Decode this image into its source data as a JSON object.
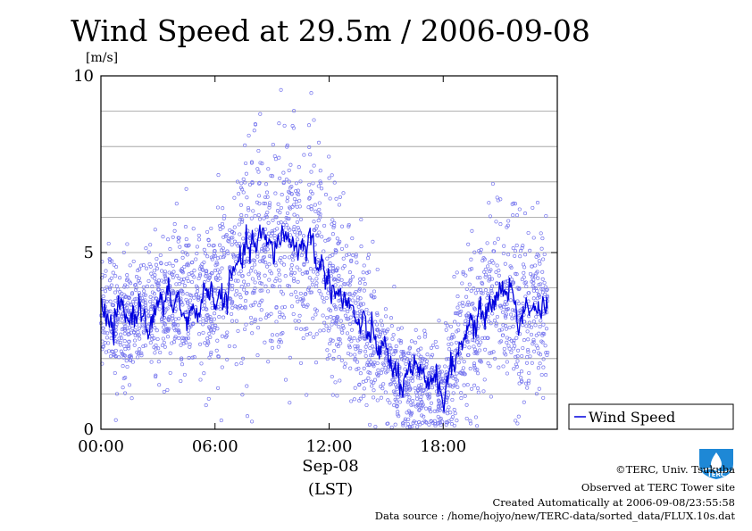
{
  "colors": {
    "scatter": "#7777ee",
    "line": "#0000dd",
    "grid": "#999999",
    "logo": "#1e88d6"
  },
  "logo_icon": "terc-logo-icon",
  "chart_data": {
    "type": "line",
    "title": "Wind Speed at 29.5m / 2006-09-08",
    "ylabel": "[m/s]",
    "xlabel": "(LST)",
    "date_label": "Sep-08",
    "xlim": [
      0,
      24
    ],
    "ylim": [
      0,
      10
    ],
    "yticks": [
      0,
      5,
      10
    ],
    "ytick_labels": [
      "0",
      "5",
      "10"
    ],
    "xticks": [
      0,
      6,
      12,
      18
    ],
    "xtick_labels": [
      "00:00",
      "06:00",
      "12:00",
      "18:00"
    ],
    "grid": true,
    "legend_position": "right",
    "series": [
      {
        "name": "Wind Speed",
        "type": "line",
        "x": [
          0,
          0.5,
          1,
          1.5,
          2,
          2.5,
          3,
          3.5,
          4,
          4.5,
          5,
          5.5,
          6,
          6.5,
          7,
          7.5,
          8,
          8.5,
          9,
          9.5,
          10,
          10.5,
          11,
          11.5,
          12,
          12.5,
          13,
          13.5,
          14,
          14.5,
          15,
          15.5,
          16,
          16.5,
          17,
          17.5,
          18,
          18.5,
          19,
          19.5,
          20,
          20.5,
          21,
          21.5,
          22,
          22.5,
          23,
          23.5
        ],
        "values": [
          3.4,
          2.8,
          3.3,
          3.1,
          3.5,
          3.0,
          3.4,
          3.6,
          3.7,
          3.0,
          3.3,
          3.9,
          3.8,
          3.6,
          4.4,
          4.9,
          5.2,
          5.4,
          5.0,
          5.6,
          5.3,
          5.1,
          5.4,
          4.6,
          4.3,
          3.8,
          3.5,
          3.0,
          2.7,
          2.5,
          2.1,
          1.6,
          1.2,
          1.6,
          1.3,
          1.6,
          1.0,
          1.7,
          2.6,
          3.0,
          3.1,
          3.6,
          3.9,
          4.0,
          3.1,
          3.6,
          3.4,
          3.3
        ]
      },
      {
        "type": "scatter",
        "x": [
          0,
          1,
          2,
          3,
          4,
          5,
          6,
          7,
          7.5,
          8,
          9,
          9.5,
          10,
          10.5,
          11,
          12,
          13,
          14,
          15,
          16,
          17,
          18,
          19,
          20,
          21,
          22,
          23
        ],
        "values": [
          3.4,
          3.0,
          3.3,
          3.5,
          3.7,
          3.5,
          3.8,
          4.4,
          4.9,
          5.2,
          5.0,
          5.6,
          5.3,
          5.1,
          5.4,
          4.3,
          3.5,
          2.7,
          2.1,
          1.2,
          1.3,
          1.0,
          2.6,
          3.1,
          3.9,
          3.1,
          3.4
        ],
        "spread": [
          1.0,
          1.0,
          1.0,
          1.2,
          1.3,
          1.2,
          1.3,
          1.5,
          1.7,
          1.8,
          1.8,
          1.8,
          1.8,
          1.8,
          1.8,
          1.6,
          1.4,
          1.3,
          1.1,
          0.9,
          0.9,
          0.9,
          1.3,
          1.4,
          1.5,
          1.4,
          1.3
        ]
      }
    ]
  },
  "legend": {
    "label": "Wind Speed"
  },
  "credits": {
    "copyright": "©TERC, Univ. Tsukuba",
    "site": "Observed at TERC Tower site",
    "created": "Created Automatically at 2006-09-08/23:55:58",
    "source": "Data source : /home/hojyo/new/TERC-data/sorted_data/FLUX.10s.dat"
  },
  "logo": {
    "text": "TERC"
  }
}
